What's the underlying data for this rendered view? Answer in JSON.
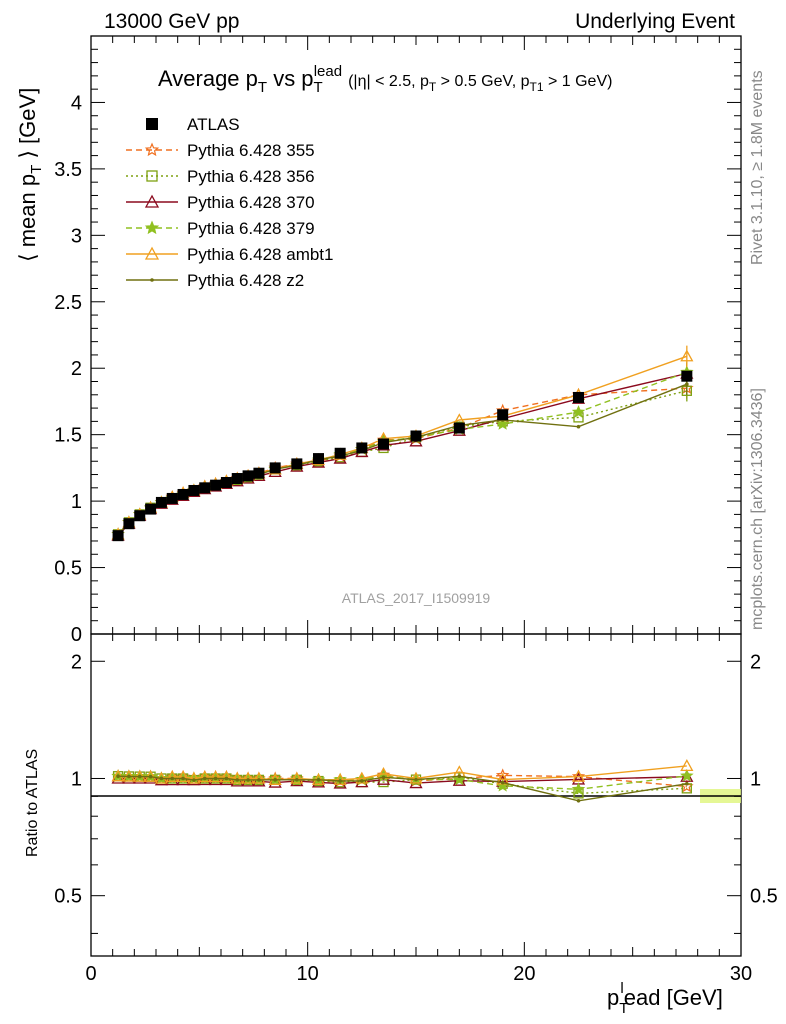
{
  "header": {
    "left": "13000 GeV pp",
    "right": "Underlying Event"
  },
  "title": {
    "main": "Average p",
    "main_sub": "T",
    "vs": " vs p",
    "vs_sub": "T",
    "vs_sup": "lead",
    "cuts": "(|η| < 2.5, p",
    "cuts_sub1": "T",
    "cuts_mid": " > 0.5 GeV, p",
    "cuts_sub2": "T1",
    "cuts_end": " > 1 GeV)"
  },
  "side_labels": {
    "rivet": "Rivet 3.1.10, ≥ 1.8M events",
    "mcplots": "mcplots.cern.ch [arXiv:1306.3436]"
  },
  "watermark": "ATLAS_2017_I1509919",
  "axes": {
    "ylabel_main_a": "⟨ mean p",
    "ylabel_main_sub": "T",
    "ylabel_main_b": " ⟩ [GeV]",
    "ylabel_ratio": "Ratio to ATLAS",
    "xlabel_a": "p",
    "xlabel_sub": "T",
    "xlabel_sup": "l",
    "xlabel_b": "ead [GeV]",
    "main_yticks": [
      "0",
      "0.5",
      "1",
      "1.5",
      "2",
      "2.5",
      "3",
      "3.5",
      "4"
    ],
    "ratio_yticks": [
      "0.5",
      "1",
      "2"
    ],
    "xticks": [
      "0",
      "10",
      "20",
      "30"
    ]
  },
  "chart_data": {
    "type": "scatter",
    "xlim": [
      0,
      30
    ],
    "ylim": [
      0,
      4.5
    ],
    "ratio_ylim": [
      0.35,
      2.35
    ],
    "x": [
      1.25,
      1.75,
      2.25,
      2.75,
      3.25,
      3.75,
      4.25,
      4.75,
      5.25,
      5.75,
      6.25,
      6.75,
      7.25,
      7.75,
      8.5,
      9.5,
      10.5,
      11.5,
      12.5,
      13.5,
      15,
      17,
      19,
      22.5,
      27.5
    ],
    "series": [
      {
        "name": "ATLAS",
        "color": "#000000",
        "marker": "square-filled",
        "dash": "none",
        "values": [
          0.74,
          0.83,
          0.89,
          0.94,
          0.99,
          1.02,
          1.05,
          1.08,
          1.1,
          1.12,
          1.14,
          1.17,
          1.19,
          1.21,
          1.25,
          1.28,
          1.32,
          1.36,
          1.4,
          1.43,
          1.49,
          1.55,
          1.65,
          1.78,
          1.94
        ]
      },
      {
        "name": "Pythia 6.428 355",
        "color": "#f07020",
        "marker": "star-open",
        "dash": "6,4",
        "values": [
          0.75,
          0.84,
          0.9,
          0.95,
          0.99,
          1.03,
          1.06,
          1.08,
          1.11,
          1.13,
          1.15,
          1.17,
          1.19,
          1.21,
          1.25,
          1.28,
          1.3,
          1.34,
          1.39,
          1.46,
          1.47,
          1.55,
          1.68,
          1.8,
          1.85
        ]
      },
      {
        "name": "Pythia 6.428 356",
        "color": "#7ea010",
        "marker": "square-open",
        "dash": "2,3",
        "values": [
          0.75,
          0.84,
          0.9,
          0.95,
          0.99,
          1.02,
          1.05,
          1.07,
          1.1,
          1.12,
          1.14,
          1.16,
          1.18,
          1.2,
          1.24,
          1.27,
          1.3,
          1.33,
          1.37,
          1.4,
          1.48,
          1.56,
          1.6,
          1.63,
          1.83
        ]
      },
      {
        "name": "Pythia 6.428 370",
        "color": "#8b0a1e",
        "marker": "triangle-open",
        "dash": "none",
        "values": [
          0.74,
          0.83,
          0.89,
          0.94,
          0.98,
          1.01,
          1.04,
          1.07,
          1.09,
          1.11,
          1.13,
          1.15,
          1.17,
          1.19,
          1.22,
          1.26,
          1.29,
          1.32,
          1.37,
          1.42,
          1.45,
          1.53,
          1.62,
          1.77,
          1.96
        ]
      },
      {
        "name": "Pythia 6.428 379",
        "color": "#90c020",
        "marker": "star-filled",
        "dash": "6,4",
        "values": [
          0.75,
          0.84,
          0.9,
          0.95,
          0.99,
          1.02,
          1.05,
          1.08,
          1.1,
          1.12,
          1.14,
          1.16,
          1.18,
          1.2,
          1.24,
          1.27,
          1.31,
          1.35,
          1.39,
          1.45,
          1.48,
          1.54,
          1.58,
          1.67,
          1.97
        ]
      },
      {
        "name": "Pythia 6.428 ambt1",
        "color": "#f0a020",
        "marker": "triangle-open",
        "dash": "none",
        "values": [
          0.75,
          0.84,
          0.9,
          0.95,
          0.99,
          1.03,
          1.06,
          1.08,
          1.11,
          1.13,
          1.15,
          1.17,
          1.19,
          1.21,
          1.24,
          1.28,
          1.31,
          1.35,
          1.4,
          1.47,
          1.49,
          1.61,
          1.64,
          1.8,
          2.09
        ]
      },
      {
        "name": "Pythia 6.428 z2",
        "color": "#707010",
        "marker": "dot",
        "dash": "none",
        "values": [
          0.75,
          0.84,
          0.9,
          0.95,
          0.99,
          1.02,
          1.05,
          1.07,
          1.1,
          1.12,
          1.14,
          1.16,
          1.18,
          1.2,
          1.24,
          1.27,
          1.31,
          1.34,
          1.38,
          1.44,
          1.48,
          1.57,
          1.61,
          1.56,
          1.88
        ]
      }
    ]
  }
}
